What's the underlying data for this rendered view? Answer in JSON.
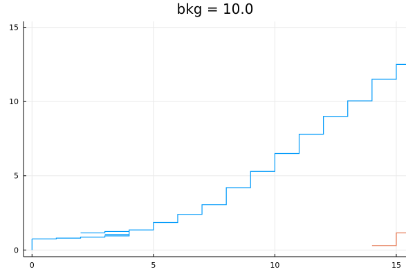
{
  "chart_data": {
    "type": "line",
    "title": "bkg = 10.0",
    "xlabel": "",
    "ylabel": "",
    "xlim": [
      -0.35,
      15.4
    ],
    "ylim": [
      -0.45,
      15.4
    ],
    "xticks": [
      0,
      5,
      10,
      15
    ],
    "yticks": [
      0,
      5,
      10,
      15
    ],
    "grid": true,
    "legend": "none",
    "step": "post",
    "series": [
      {
        "color": "#009AFA",
        "x": [
          0,
          1,
          2,
          3,
          4,
          5,
          6,
          7,
          8,
          9,
          10,
          11,
          12,
          13,
          14,
          15,
          15.4
        ],
        "y": [
          0.75,
          0.8,
          0.87,
          0.95,
          1.35,
          1.85,
          2.4,
          3.05,
          4.2,
          5.3,
          6.5,
          7.8,
          9.0,
          10.05,
          11.5,
          12.5,
          12.5
        ]
      },
      {
        "color": "#009AFA",
        "x": [
          2,
          3,
          4
        ],
        "y": [
          1.15,
          1.25,
          1.25
        ]
      },
      {
        "color": "#009AFA",
        "x": [
          3,
          4
        ],
        "y": [
          1.05,
          1.05
        ]
      },
      {
        "color": "#E36F47",
        "x": [
          14,
          15,
          15.4
        ],
        "y": [
          0.3,
          1.15,
          1.15
        ]
      }
    ]
  }
}
